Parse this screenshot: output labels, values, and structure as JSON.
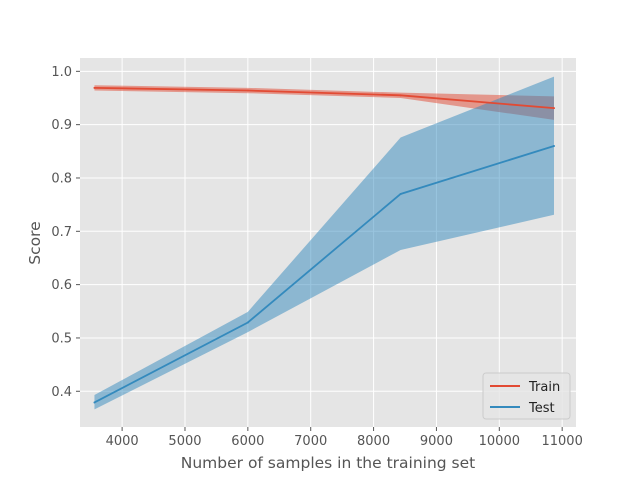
{
  "chart_data": {
    "type": "line",
    "title": "",
    "xlabel": "Number of samples in the training set",
    "ylabel": "Score",
    "xlim": [
      3330,
      11220
    ],
    "ylim": [
      0.333,
      1.025
    ],
    "xticks": [
      4000,
      5000,
      6000,
      7000,
      8000,
      9000,
      10000,
      11000
    ],
    "yticks": [
      0.4,
      0.5,
      0.6,
      0.7,
      0.8,
      0.9,
      1.0
    ],
    "xtick_labels": [
      "4000",
      "5000",
      "6000",
      "7000",
      "8000",
      "9000",
      "10000",
      "11000"
    ],
    "ytick_labels": [
      "0.4",
      "0.5",
      "0.6",
      "0.7",
      "0.8",
      "0.9",
      "1.0"
    ],
    "grid": true,
    "legend": {
      "placement": "lower-right"
    },
    "x": [
      3560,
      6000,
      8430,
      10870
    ],
    "series": [
      {
        "name": "Train",
        "color": "#E24A33",
        "values": [
          0.969,
          0.964,
          0.955,
          0.931
        ],
        "lower": [
          0.964,
          0.959,
          0.95,
          0.909
        ],
        "upper": [
          0.974,
          0.969,
          0.96,
          0.953
        ]
      },
      {
        "name": "Test",
        "color": "#348ABD",
        "values": [
          0.379,
          0.529,
          0.77,
          0.86
        ],
        "lower": [
          0.366,
          0.511,
          0.665,
          0.731
        ],
        "upper": [
          0.393,
          0.549,
          0.876,
          0.99
        ]
      }
    ]
  }
}
